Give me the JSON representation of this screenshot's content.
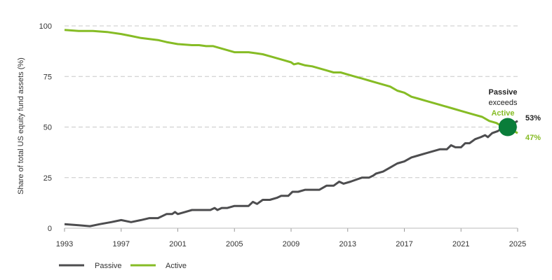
{
  "chart_data": {
    "type": "line",
    "title": "",
    "xlabel": "",
    "ylabel": "Share of total US equity fund assets (%)",
    "xlim": [
      1993,
      2025
    ],
    "ylim": [
      0,
      100
    ],
    "x_ticks": [
      "1993",
      "1997",
      "2001",
      "2005",
      "2009",
      "2013",
      "2017",
      "2021",
      "2025"
    ],
    "y_ticks": [
      "0",
      "25",
      "50",
      "75",
      "100"
    ],
    "grid": "horizontal-dashed",
    "legend": "bottom-left",
    "series": [
      {
        "name": "Passive",
        "color": "#4d4d4f",
        "points": [
          [
            1993.0,
            2
          ],
          [
            1994.0,
            1.5
          ],
          [
            1994.8,
            1
          ],
          [
            1995.5,
            2
          ],
          [
            1996.3,
            3
          ],
          [
            1997.0,
            4
          ],
          [
            1997.7,
            3
          ],
          [
            1998.4,
            4
          ],
          [
            1999.0,
            5
          ],
          [
            1999.6,
            5
          ],
          [
            2000.2,
            7
          ],
          [
            2000.6,
            7
          ],
          [
            2000.8,
            8
          ],
          [
            2001.0,
            7
          ],
          [
            2001.5,
            8
          ],
          [
            2002.0,
            9
          ],
          [
            2002.5,
            9
          ],
          [
            2003.0,
            9
          ],
          [
            2003.3,
            9
          ],
          [
            2003.6,
            10
          ],
          [
            2003.8,
            9
          ],
          [
            2004.1,
            10
          ],
          [
            2004.5,
            10
          ],
          [
            2005.0,
            11
          ],
          [
            2005.5,
            11
          ],
          [
            2006.0,
            11
          ],
          [
            2006.3,
            13
          ],
          [
            2006.6,
            12
          ],
          [
            2007.0,
            14
          ],
          [
            2007.5,
            14
          ],
          [
            2008.0,
            15
          ],
          [
            2008.3,
            16
          ],
          [
            2008.8,
            16
          ],
          [
            2009.1,
            18
          ],
          [
            2009.5,
            18
          ],
          [
            2010.0,
            19
          ],
          [
            2010.5,
            19
          ],
          [
            2011.0,
            19
          ],
          [
            2011.5,
            21
          ],
          [
            2012.0,
            21
          ],
          [
            2012.4,
            23
          ],
          [
            2012.7,
            22
          ],
          [
            2013.2,
            23
          ],
          [
            2013.6,
            24
          ],
          [
            2014.0,
            25
          ],
          [
            2014.5,
            25
          ],
          [
            2014.8,
            26
          ],
          [
            2015.0,
            27
          ],
          [
            2015.5,
            28
          ],
          [
            2016.0,
            30
          ],
          [
            2016.5,
            32
          ],
          [
            2017.0,
            33
          ],
          [
            2017.5,
            35
          ],
          [
            2018.0,
            36
          ],
          [
            2018.5,
            37
          ],
          [
            2019.0,
            38
          ],
          [
            2019.5,
            39
          ],
          [
            2020.0,
            39
          ],
          [
            2020.3,
            41
          ],
          [
            2020.6,
            40
          ],
          [
            2021.0,
            40
          ],
          [
            2021.3,
            42
          ],
          [
            2021.6,
            42
          ],
          [
            2022.0,
            44
          ],
          [
            2022.4,
            45
          ],
          [
            2022.7,
            46
          ],
          [
            2022.9,
            45
          ],
          [
            2023.2,
            47
          ],
          [
            2023.6,
            48
          ],
          [
            2024.0,
            50
          ],
          [
            2024.5,
            51
          ],
          [
            2025.0,
            53
          ]
        ]
      },
      {
        "name": "Active",
        "color": "#86bc25",
        "points": [
          [
            1993.0,
            98
          ],
          [
            1994.0,
            97.5
          ],
          [
            1995.0,
            97.5
          ],
          [
            1996.0,
            97
          ],
          [
            1997.0,
            96
          ],
          [
            1997.7,
            95
          ],
          [
            1998.4,
            94
          ],
          [
            1999.0,
            93.5
          ],
          [
            1999.6,
            93
          ],
          [
            2000.2,
            92
          ],
          [
            2001.0,
            91
          ],
          [
            2002.0,
            90.5
          ],
          [
            2002.5,
            90.5
          ],
          [
            2003.0,
            90
          ],
          [
            2003.5,
            90
          ],
          [
            2004.0,
            89
          ],
          [
            2004.5,
            88
          ],
          [
            2005.0,
            87
          ],
          [
            2005.5,
            87
          ],
          [
            2006.0,
            87
          ],
          [
            2006.5,
            86.5
          ],
          [
            2007.0,
            86
          ],
          [
            2007.5,
            85
          ],
          [
            2008.0,
            84
          ],
          [
            2008.5,
            83
          ],
          [
            2009.0,
            82
          ],
          [
            2009.2,
            81
          ],
          [
            2009.5,
            81.5
          ],
          [
            2010.0,
            80.5
          ],
          [
            2010.5,
            80
          ],
          [
            2011.0,
            79
          ],
          [
            2011.5,
            78
          ],
          [
            2012.0,
            77
          ],
          [
            2012.5,
            77
          ],
          [
            2013.0,
            76
          ],
          [
            2013.5,
            75
          ],
          [
            2014.0,
            74
          ],
          [
            2014.5,
            73
          ],
          [
            2015.0,
            72
          ],
          [
            2015.5,
            71
          ],
          [
            2016.0,
            70
          ],
          [
            2016.5,
            68
          ],
          [
            2017.0,
            67
          ],
          [
            2017.5,
            65
          ],
          [
            2018.0,
            64
          ],
          [
            2018.5,
            63
          ],
          [
            2019.0,
            62
          ],
          [
            2019.5,
            61
          ],
          [
            2020.0,
            60
          ],
          [
            2020.5,
            59
          ],
          [
            2021.0,
            58
          ],
          [
            2021.5,
            57
          ],
          [
            2022.0,
            56
          ],
          [
            2022.5,
            55
          ],
          [
            2023.0,
            53
          ],
          [
            2023.5,
            52
          ],
          [
            2024.0,
            50
          ],
          [
            2024.5,
            49
          ],
          [
            2025.0,
            47
          ]
        ]
      }
    ],
    "annotations": {
      "crossover_year": 2024.3,
      "crossover_value": 50,
      "crossover_color": "#0a7d3a",
      "line1": "Passive",
      "line2": "exceeds",
      "line3": "Active",
      "passive_end_label": "53%",
      "active_end_label": "47%"
    }
  },
  "legend": {
    "passive_label": "Passive",
    "active_label": "Active"
  }
}
